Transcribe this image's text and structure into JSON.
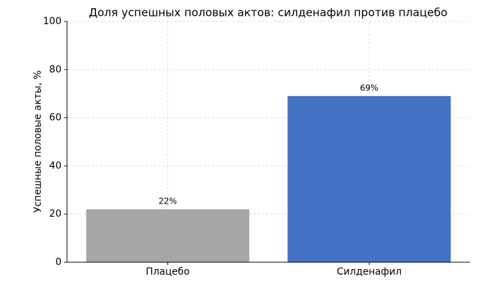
{
  "chart_data": {
    "type": "bar",
    "title": "Доля успешных половых актов: силденафил против плацебо",
    "y_label": "Успешные половые акты, %",
    "categories": [
      "Плацебо",
      "Силденафил"
    ],
    "values": [
      22,
      69
    ],
    "value_labels": [
      "22%",
      "69%"
    ],
    "colors": [
      "#a6a6a6",
      "#4472c4"
    ],
    "ylim": [
      0,
      100
    ],
    "yticks": [
      0,
      20,
      40,
      60,
      80,
      100
    ],
    "grid": true
  }
}
